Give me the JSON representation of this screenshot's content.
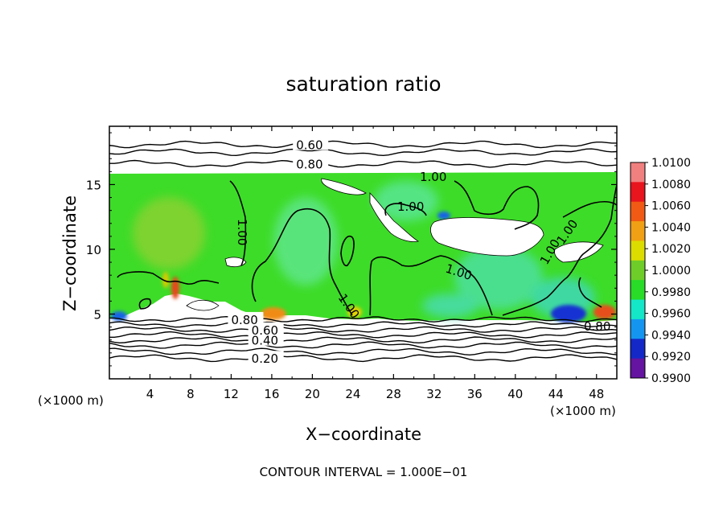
{
  "chart_data": {
    "type": "heatmap",
    "title": "saturation ratio",
    "xlabel": "X−coordinate",
    "ylabel": "Z−coordinate",
    "x_unit_label": "(×1000 m)",
    "y_unit_label": "(×1000 m)",
    "xlim": [
      0,
      50
    ],
    "ylim": [
      0,
      19.5
    ],
    "x_ticks": [
      4,
      8,
      12,
      16,
      20,
      24,
      28,
      32,
      36,
      40,
      44,
      48
    ],
    "y_ticks": [
      5,
      10,
      15
    ],
    "footer": "CONTOUR INTERVAL = 1.000E−01",
    "colorbar": {
      "labels": [
        "1.0100",
        "1.0080",
        "1.0060",
        "1.0040",
        "1.0020",
        "1.0000",
        "0.9980",
        "0.9960",
        "0.9940",
        "0.9920",
        "0.9900"
      ],
      "colors": [
        "#f08080",
        "#e8141e",
        "#f05a14",
        "#f0a014",
        "#dcdc00",
        "#6ecd28",
        "#28dc28",
        "#14e6c8",
        "#1496f0",
        "#1428c8",
        "#6414a0"
      ]
    },
    "contours": [
      {
        "label": "0.20",
        "z": 1.6,
        "show_label": true,
        "label_x": 14
      },
      {
        "label": "",
        "z": 2.1,
        "show_label": false
      },
      {
        "label": "",
        "z": 2.6,
        "show_label": false
      },
      {
        "label": "0.40",
        "z": 3.0,
        "show_label": true,
        "label_x": 14
      },
      {
        "label": "",
        "z": 3.4,
        "show_label": false
      },
      {
        "label": "0.60",
        "z": 3.8,
        "show_label": true,
        "label_x": 14
      },
      {
        "label": "",
        "z": 4.2,
        "show_label": false
      },
      {
        "label": "0.80",
        "z": 4.6,
        "show_label": true,
        "label_x": 12
      },
      {
        "label": "0.60",
        "z": 18.1,
        "show_label": true,
        "label_x": 18.4
      },
      {
        "label": "",
        "z": 17.5,
        "show_label": false
      },
      {
        "label": "0.80",
        "z": 16.6,
        "show_label": true,
        "label_x": 18.4
      }
    ],
    "inline_labels": [
      "1.00",
      "1.00",
      "1.00",
      "1.00",
      "1.00",
      "1.00",
      "1.00",
      "0.80"
    ]
  }
}
